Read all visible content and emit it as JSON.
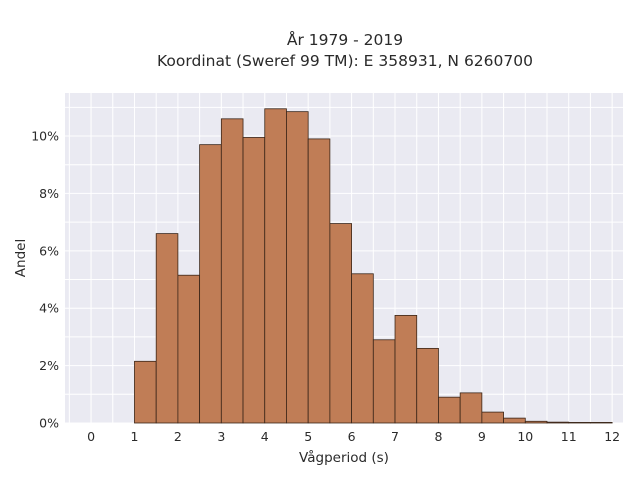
{
  "chart_data": {
    "type": "bar",
    "title_line1": "År 1979 - 2019",
    "title_line2": "Koordinat (Sweref 99 TM): E 358931, N 6260700",
    "xlabel": "Vågperiod (s)",
    "ylabel": "Andel",
    "bin_width": 0.5,
    "x_ticks": [
      0,
      1,
      2,
      3,
      4,
      5,
      6,
      7,
      8,
      9,
      10,
      11,
      12
    ],
    "x_tick_labels": [
      "0",
      "1",
      "2",
      "3",
      "4",
      "5",
      "6",
      "7",
      "8",
      "9",
      "10",
      "11",
      "12"
    ],
    "y_ticks": [
      0,
      2,
      4,
      6,
      8,
      10
    ],
    "y_tick_labels": [
      "0%",
      "2%",
      "4%",
      "6%",
      "8%",
      "10%"
    ],
    "xlim": [
      -0.6,
      12.25
    ],
    "ylim": [
      0,
      11.5
    ],
    "bins": [
      {
        "x0": 1.0,
        "x1": 1.5,
        "value": 2.15
      },
      {
        "x0": 1.5,
        "x1": 2.0,
        "value": 6.6
      },
      {
        "x0": 2.0,
        "x1": 2.5,
        "value": 5.15
      },
      {
        "x0": 2.5,
        "x1": 3.0,
        "value": 9.7
      },
      {
        "x0": 3.0,
        "x1": 3.5,
        "value": 10.6
      },
      {
        "x0": 3.5,
        "x1": 4.0,
        "value": 9.95
      },
      {
        "x0": 4.0,
        "x1": 4.5,
        "value": 10.95
      },
      {
        "x0": 4.5,
        "x1": 5.0,
        "value": 10.85
      },
      {
        "x0": 5.0,
        "x1": 5.5,
        "value": 9.9
      },
      {
        "x0": 5.5,
        "x1": 6.0,
        "value": 6.95
      },
      {
        "x0": 6.0,
        "x1": 6.5,
        "value": 5.2
      },
      {
        "x0": 6.5,
        "x1": 7.0,
        "value": 2.9
      },
      {
        "x0": 7.0,
        "x1": 7.5,
        "value": 3.75
      },
      {
        "x0": 7.5,
        "x1": 8.0,
        "value": 2.6
      },
      {
        "x0": 8.0,
        "x1": 8.5,
        "value": 0.9
      },
      {
        "x0": 8.5,
        "x1": 9.0,
        "value": 1.05
      },
      {
        "x0": 9.0,
        "x1": 9.5,
        "value": 0.38
      },
      {
        "x0": 9.5,
        "x1": 10.0,
        "value": 0.17
      },
      {
        "x0": 10.0,
        "x1": 10.5,
        "value": 0.06
      },
      {
        "x0": 10.5,
        "x1": 11.0,
        "value": 0.03
      },
      {
        "x0": 11.0,
        "x1": 11.5,
        "value": 0.02
      },
      {
        "x0": 11.5,
        "x1": 12.0,
        "value": 0.02
      }
    ],
    "grid": true,
    "colors": {
      "bar_fill": "#c07d56",
      "bar_stroke": "#3a2518",
      "plot_background": "#eaeaf2",
      "grid": "#ffffff",
      "text": "#2a2a2a"
    }
  }
}
